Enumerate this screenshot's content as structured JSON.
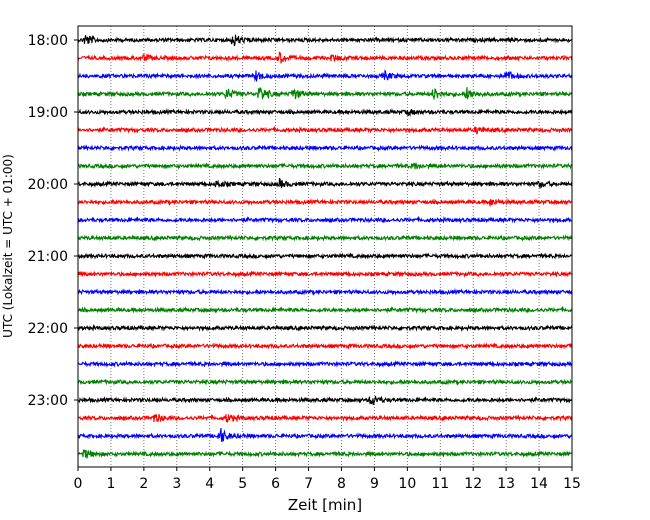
{
  "chart_data": {
    "type": "line",
    "title": "",
    "xlabel": "Zeit  [min]",
    "ylabel": "UTC (Lokalzeit = UTC + 01:00)",
    "xlim": [
      0,
      15
    ],
    "x_ticks": [
      "0",
      "1",
      "2",
      "3",
      "4",
      "5",
      "6",
      "7",
      "8",
      "9",
      "10",
      "11",
      "12",
      "13",
      "14",
      "15"
    ],
    "y_tick_labels": [
      "18:00",
      "19:00",
      "20:00",
      "21:00",
      "22:00",
      "23:00"
    ],
    "vertical_grid": true,
    "grid_style": "dotted",
    "trace_colors": [
      "#000000",
      "#ff0000",
      "#0000ff",
      "#008000"
    ],
    "trace_start_times": [
      "18:00",
      "18:15",
      "18:30",
      "18:45",
      "19:00",
      "19:15",
      "19:30",
      "19:45",
      "20:00",
      "20:15",
      "20:30",
      "20:45",
      "21:00",
      "21:15",
      "21:30",
      "21:45",
      "22:00",
      "22:15",
      "22:30",
      "22:45",
      "23:00",
      "23:15",
      "23:30",
      "23:45"
    ],
    "events": [
      {
        "trace": 0,
        "minute": 0.2,
        "amp": 0.9
      },
      {
        "trace": 0,
        "minute": 4.7,
        "amp": 1.0
      },
      {
        "trace": 1,
        "minute": 2.0,
        "amp": 0.4
      },
      {
        "trace": 1,
        "minute": 6.1,
        "amp": 0.8
      },
      {
        "trace": 1,
        "minute": 7.7,
        "amp": 0.5
      },
      {
        "trace": 2,
        "minute": 5.4,
        "amp": 0.7
      },
      {
        "trace": 2,
        "minute": 9.3,
        "amp": 0.6
      },
      {
        "trace": 2,
        "minute": 13.0,
        "amp": 0.7
      },
      {
        "trace": 3,
        "minute": 4.5,
        "amp": 0.8
      },
      {
        "trace": 3,
        "minute": 5.5,
        "amp": 1.3
      },
      {
        "trace": 3,
        "minute": 6.5,
        "amp": 0.9
      },
      {
        "trace": 3,
        "minute": 10.8,
        "amp": 0.9
      },
      {
        "trace": 3,
        "minute": 11.8,
        "amp": 0.9
      },
      {
        "trace": 4,
        "minute": 10.0,
        "amp": 0.4
      },
      {
        "trace": 5,
        "minute": 12.1,
        "amp": 0.5
      },
      {
        "trace": 7,
        "minute": 10.2,
        "amp": 0.4
      },
      {
        "trace": 8,
        "minute": 4.2,
        "amp": 0.5
      },
      {
        "trace": 8,
        "minute": 6.1,
        "amp": 0.6
      },
      {
        "trace": 8,
        "minute": 14.0,
        "amp": 0.4
      },
      {
        "trace": 9,
        "minute": 12.5,
        "amp": 0.5
      },
      {
        "trace": 20,
        "minute": 8.9,
        "amp": 0.9
      },
      {
        "trace": 21,
        "minute": 2.3,
        "amp": 0.7
      },
      {
        "trace": 21,
        "minute": 4.5,
        "amp": 0.6
      },
      {
        "trace": 22,
        "minute": 4.3,
        "amp": 1.2
      },
      {
        "trace": 23,
        "minute": 0.2,
        "amp": 0.7
      }
    ]
  }
}
